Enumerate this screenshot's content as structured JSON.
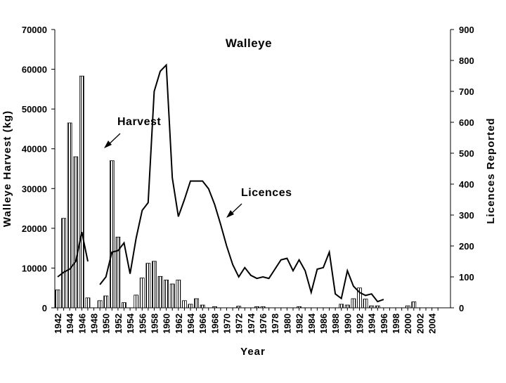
{
  "chart_data": {
    "type": "bar+line",
    "title": "Walleye",
    "xlabel": "Year",
    "ylabel_left": "Walleye Harvest (kg)",
    "ylabel_right": "Licences Reported",
    "ylim_left": [
      0,
      70000
    ],
    "ylim_right": [
      0,
      900
    ],
    "yticks_left": [
      "0",
      "10000",
      "20000",
      "30000",
      "40000",
      "50000",
      "60000",
      "70000"
    ],
    "yticks_right": [
      "0",
      "100",
      "200",
      "300",
      "400",
      "500",
      "600",
      "700",
      "800",
      "900"
    ],
    "x_years": [
      1942,
      1943,
      1944,
      1945,
      1946,
      1947,
      1948,
      1949,
      1950,
      1951,
      1952,
      1953,
      1954,
      1955,
      1956,
      1957,
      1958,
      1959,
      1960,
      1961,
      1962,
      1963,
      1964,
      1965,
      1966,
      1967,
      1968,
      1969,
      1970,
      1971,
      1972,
      1973,
      1974,
      1975,
      1976,
      1977,
      1978,
      1979,
      1980,
      1981,
      1982,
      1983,
      1984,
      1985,
      1986,
      1987,
      1988,
      1989,
      1990,
      1991,
      1992,
      1993,
      1994,
      1995,
      1996,
      1997,
      1998,
      1999,
      2000,
      2001,
      2002,
      2003,
      2004,
      2005
    ],
    "xtick_labels": [
      "1942",
      "1944",
      "1946",
      "1948",
      "1950",
      "1952",
      "1954",
      "1956",
      "1958",
      "1960",
      "1962",
      "1964",
      "1966",
      "1968",
      "1970",
      "1972",
      "1974",
      "1976",
      "1978",
      "1980",
      "1982",
      "1984",
      "1986",
      "1988",
      "1990",
      "1992",
      "1994",
      "1996",
      "1998",
      "2000",
      "2002",
      "2004"
    ],
    "series": [
      {
        "name": "Harvest",
        "type": "bar",
        "axis": "left",
        "values": [
          4500,
          22500,
          46500,
          38000,
          58300,
          2500,
          0,
          1800,
          3000,
          37000,
          17800,
          1300,
          0,
          3200,
          7500,
          11200,
          11700,
          7900,
          7000,
          6000,
          7000,
          1800,
          900,
          2300,
          700,
          0,
          300,
          0,
          0,
          0,
          400,
          0,
          0,
          300,
          300,
          0,
          0,
          0,
          0,
          0,
          300,
          0,
          0,
          0,
          0,
          0,
          0,
          900,
          700,
          2300,
          5000,
          2200,
          500,
          500,
          0,
          0,
          0,
          0,
          500,
          1500,
          0,
          0,
          0,
          0
        ]
      },
      {
        "name": "Licences",
        "type": "line",
        "axis": "right",
        "values": [
          100,
          115,
          125,
          150,
          245,
          150,
          null,
          75,
          100,
          180,
          185,
          210,
          110,
          225,
          315,
          340,
          700,
          765,
          785,
          420,
          295,
          350,
          410,
          410,
          410,
          385,
          335,
          270,
          200,
          140,
          100,
          130,
          105,
          95,
          100,
          95,
          125,
          155,
          160,
          120,
          155,
          120,
          50,
          125,
          130,
          180,
          45,
          30,
          120,
          70,
          50,
          40,
          45,
          20,
          27,
          null,
          null,
          null,
          null,
          null,
          null,
          null,
          null,
          null
        ]
      }
    ],
    "annotations": [
      {
        "text": "Harvest"
      },
      {
        "text": "Licences"
      }
    ]
  }
}
